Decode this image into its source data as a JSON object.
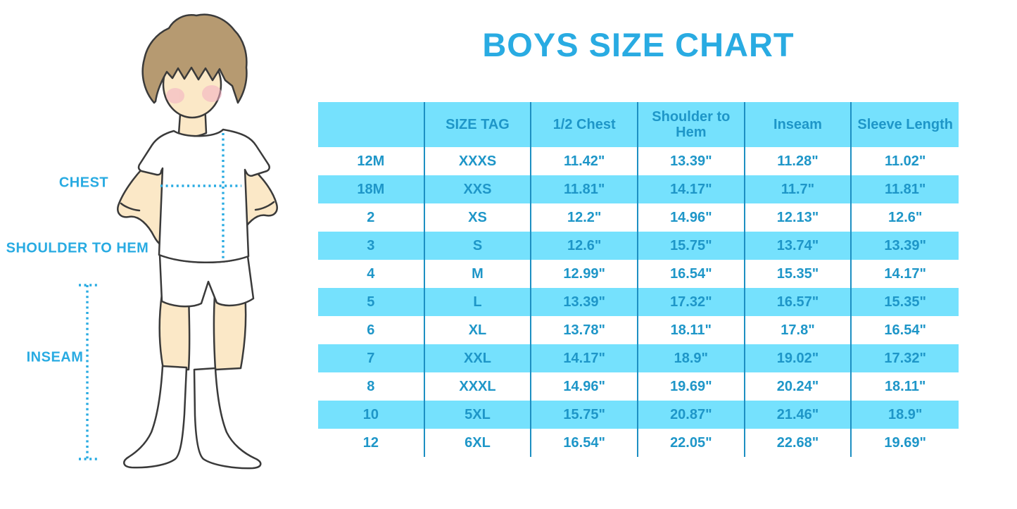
{
  "title": "BOYS SIZE CHART",
  "colors": {
    "accent": "#29ABE2",
    "table_text": "#1E96C8",
    "stripe": "#75E1FD",
    "divider": "#1D8FC2",
    "skin": "#FBE8C7",
    "hair": "#B69A71",
    "blush": "#F3AEC2",
    "outline": "#3A3A3A"
  },
  "illustration": {
    "labels": {
      "chest": "CHEST",
      "shoulder_to_hem": "SHOULDER TO HEM",
      "inseam": "INSEAM"
    }
  },
  "chart_data": {
    "type": "table",
    "title": "BOYS SIZE CHART",
    "columns": [
      "",
      "SIZE TAG",
      "1/2 Chest",
      "Shoulder to Hem",
      "Inseam",
      "Sleeve Length"
    ],
    "rows": [
      [
        "12M",
        "XXXS",
        "11.42\"",
        "13.39\"",
        "11.28\"",
        "11.02\""
      ],
      [
        "18M",
        "XXS",
        "11.81\"",
        "14.17\"",
        "11.7\"",
        "11.81\""
      ],
      [
        "2",
        "XS",
        "12.2\"",
        "14.96\"",
        "12.13\"",
        "12.6\""
      ],
      [
        "3",
        "S",
        "12.6\"",
        "15.75\"",
        "13.74\"",
        "13.39\""
      ],
      [
        "4",
        "M",
        "12.99\"",
        "16.54\"",
        "15.35\"",
        "14.17\""
      ],
      [
        "5",
        "L",
        "13.39\"",
        "17.32\"",
        "16.57\"",
        "15.35\""
      ],
      [
        "6",
        "XL",
        "13.78\"",
        "18.11\"",
        "17.8\"",
        "16.54\""
      ],
      [
        "7",
        "XXL",
        "14.17\"",
        "18.9\"",
        "19.02\"",
        "17.32\""
      ],
      [
        "8",
        "XXXL",
        "14.96\"",
        "19.69\"",
        "20.24\"",
        "18.11\""
      ],
      [
        "10",
        "5XL",
        "15.75\"",
        "20.87\"",
        "21.46\"",
        "18.9\""
      ],
      [
        "12",
        "6XL",
        "16.54\"",
        "22.05\"",
        "22.68\"",
        "19.69\""
      ]
    ],
    "row_striping": "header and alternate rows cyan, starting with white first data row",
    "legend_position": "none",
    "grid": "vertical column dividers only"
  }
}
